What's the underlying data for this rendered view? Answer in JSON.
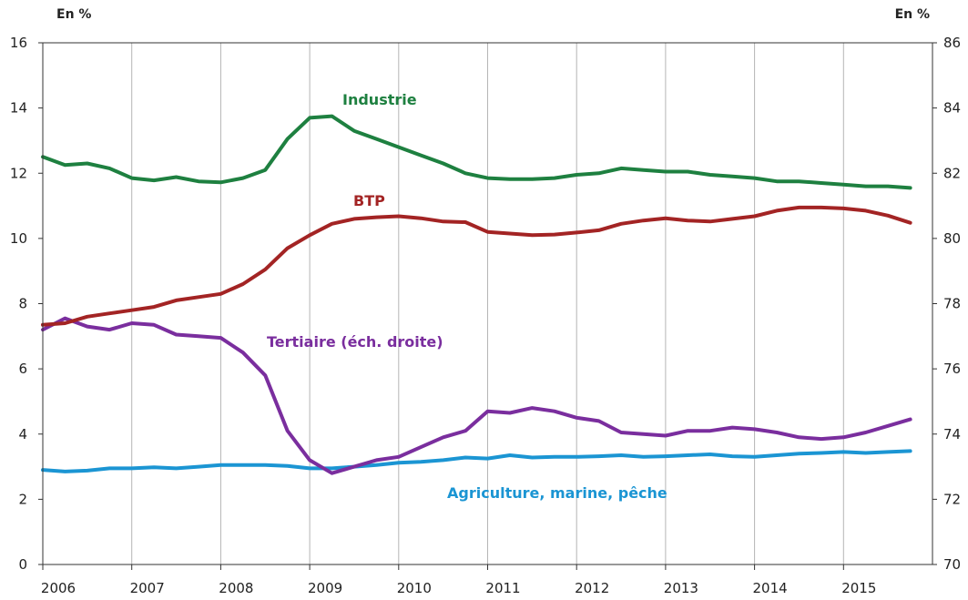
{
  "chart_data": {
    "type": "line",
    "left_axis": {
      "unit": "En %",
      "ylim": [
        0,
        16
      ],
      "ticks": [
        "0",
        "2",
        "4",
        "6",
        "8",
        "10",
        "12",
        "14",
        "16"
      ]
    },
    "right_axis": {
      "unit": "En %",
      "ylim": [
        70,
        86
      ],
      "ticks": [
        "70",
        "72",
        "74",
        "76",
        "78",
        "80",
        "82",
        "84",
        "86"
      ]
    },
    "x_axis": {
      "xlim": [
        2006.0,
        2016.0
      ],
      "ticks": [
        "2006",
        "2007",
        "2008",
        "2009",
        "2010",
        "2011",
        "2012",
        "2013",
        "2014",
        "2015"
      ]
    },
    "grid": "vertical",
    "x": [
      2006.0,
      2006.25,
      2006.5,
      2006.75,
      2007.0,
      2007.25,
      2007.5,
      2007.75,
      2008.0,
      2008.25,
      2008.5,
      2008.75,
      2009.0,
      2009.25,
      2009.5,
      2009.75,
      2010.0,
      2010.25,
      2010.5,
      2010.75,
      2011.0,
      2011.25,
      2011.5,
      2011.75,
      2012.0,
      2012.25,
      2012.5,
      2012.75,
      2013.0,
      2013.25,
      2013.5,
      2013.75,
      2014.0,
      2014.25,
      2014.5,
      2014.75,
      2015.0,
      2015.25,
      2015.5,
      2015.75
    ],
    "series": [
      {
        "name": "Industrie",
        "color": "#1e8040",
        "axis": "left",
        "values": [
          12.5,
          12.25,
          12.3,
          12.15,
          11.85,
          11.78,
          11.88,
          11.75,
          11.72,
          11.85,
          12.1,
          13.05,
          13.7,
          13.75,
          13.3,
          13.05,
          12.8,
          12.55,
          12.3,
          12.0,
          11.85,
          11.82,
          11.82,
          11.85,
          11.95,
          12.0,
          12.15,
          12.1,
          12.05,
          12.05,
          11.95,
          11.9,
          11.85,
          11.75,
          11.75,
          11.7,
          11.65,
          11.6,
          11.6,
          11.55
        ]
      },
      {
        "name": "BTP",
        "color": "#a32424",
        "axis": "left",
        "values": [
          7.35,
          7.4,
          7.6,
          7.7,
          7.8,
          7.9,
          8.1,
          8.2,
          8.3,
          8.6,
          9.05,
          9.7,
          10.1,
          10.45,
          10.6,
          10.65,
          10.68,
          10.62,
          10.52,
          10.5,
          10.2,
          10.15,
          10.1,
          10.12,
          10.18,
          10.25,
          10.45,
          10.55,
          10.62,
          10.55,
          10.52,
          10.6,
          10.68,
          10.85,
          10.95,
          10.95,
          10.92,
          10.85,
          10.7,
          10.48
        ]
      },
      {
        "name": "Tertiaire (éch. droite)",
        "color": "#7a2e9e",
        "axis": "right",
        "values": [
          77.2,
          77.55,
          77.3,
          77.2,
          77.4,
          77.35,
          77.05,
          77.0,
          76.95,
          76.5,
          75.8,
          74.1,
          73.2,
          72.8,
          73.0,
          73.2,
          73.3,
          73.6,
          73.9,
          74.1,
          74.7,
          74.65,
          74.8,
          74.7,
          74.5,
          74.4,
          74.05,
          74.0,
          73.95,
          74.1,
          74.1,
          74.2,
          74.15,
          74.05,
          73.9,
          73.85,
          73.9,
          74.05,
          74.25,
          74.45
        ]
      },
      {
        "name": "Agriculture, marine, pêche",
        "color": "#1b95d3",
        "axis": "left",
        "values": [
          2.9,
          2.85,
          2.88,
          2.95,
          2.95,
          2.98,
          2.95,
          3.0,
          3.05,
          3.05,
          3.05,
          3.02,
          2.95,
          2.95,
          3.0,
          3.05,
          3.12,
          3.15,
          3.2,
          3.28,
          3.25,
          3.35,
          3.28,
          3.3,
          3.3,
          3.32,
          3.35,
          3.3,
          3.32,
          3.35,
          3.38,
          3.32,
          3.3,
          3.35,
          3.4,
          3.42,
          3.45,
          3.42,
          3.45,
          3.48
        ]
      }
    ]
  }
}
